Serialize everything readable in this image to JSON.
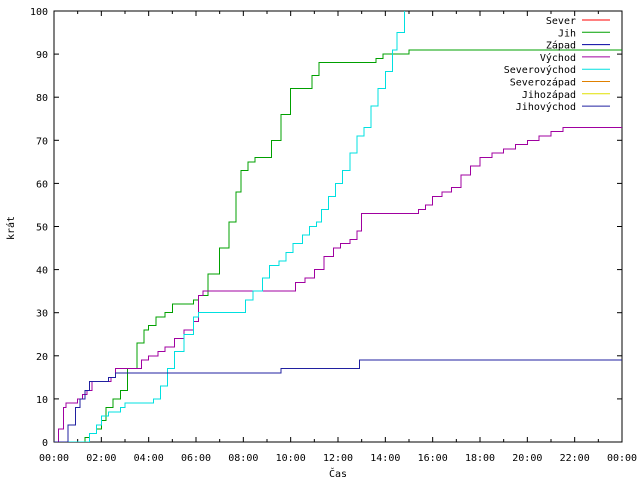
{
  "chart_data": {
    "type": "line",
    "title": "",
    "xlabel": "Čas",
    "ylabel": "krát",
    "xlim": [
      0,
      24
    ],
    "ylim": [
      0,
      100
    ],
    "x_unit": "hours",
    "x_tick_labels": [
      "00:00",
      "02:00",
      "04:00",
      "06:00",
      "08:00",
      "10:00",
      "12:00",
      "14:00",
      "16:00",
      "18:00",
      "20:00",
      "22:00",
      "00:00"
    ],
    "y_tick_labels": [
      "0",
      "10",
      "20",
      "30",
      "40",
      "50",
      "60",
      "70",
      "80",
      "90",
      "100"
    ],
    "legend_position": "top-right",
    "series": [
      {
        "name": "Sever",
        "color": "#ff0000",
        "points": []
      },
      {
        "name": "Jih",
        "color": "#00a000",
        "points": [
          [
            0,
            0
          ],
          [
            1.25,
            0
          ],
          [
            1.3,
            1
          ],
          [
            1.5,
            2
          ],
          [
            1.8,
            3
          ],
          [
            2.0,
            5
          ],
          [
            2.2,
            8
          ],
          [
            2.5,
            10
          ],
          [
            2.8,
            12
          ],
          [
            3.1,
            17
          ],
          [
            3.5,
            23
          ],
          [
            3.8,
            26
          ],
          [
            4.0,
            27
          ],
          [
            4.3,
            29
          ],
          [
            4.7,
            30
          ],
          [
            5.0,
            32
          ],
          [
            5.3,
            32
          ],
          [
            5.6,
            32
          ],
          [
            5.9,
            33
          ],
          [
            6.1,
            34
          ],
          [
            6.5,
            39
          ],
          [
            7.0,
            45
          ],
          [
            7.4,
            51
          ],
          [
            7.7,
            58
          ],
          [
            7.9,
            63
          ],
          [
            8.2,
            65
          ],
          [
            8.5,
            66
          ],
          [
            8.9,
            66
          ],
          [
            9.2,
            70
          ],
          [
            9.6,
            76
          ],
          [
            10.0,
            82
          ],
          [
            10.5,
            82
          ],
          [
            10.9,
            85
          ],
          [
            11.2,
            88
          ],
          [
            11.6,
            88
          ],
          [
            12.5,
            88
          ],
          [
            13.4,
            88
          ],
          [
            13.6,
            89
          ],
          [
            13.9,
            90
          ],
          [
            14.5,
            90
          ],
          [
            15,
            91
          ],
          [
            16,
            91
          ],
          [
            24,
            91
          ]
        ]
      },
      {
        "name": "Západ",
        "color": "#0000a0",
        "points": []
      },
      {
        "name": "Východ",
        "color": "#a000a0",
        "points": [
          [
            0,
            0
          ],
          [
            0.2,
            3
          ],
          [
            0.4,
            8
          ],
          [
            0.5,
            9
          ],
          [
            0.8,
            9
          ],
          [
            1.0,
            10
          ],
          [
            1.2,
            11
          ],
          [
            1.4,
            12
          ],
          [
            1.6,
            14
          ],
          [
            2.0,
            14
          ],
          [
            2.4,
            15
          ],
          [
            2.6,
            17
          ],
          [
            3.0,
            17
          ],
          [
            3.4,
            17
          ],
          [
            3.7,
            19
          ],
          [
            4.0,
            20
          ],
          [
            4.4,
            21
          ],
          [
            4.7,
            22
          ],
          [
            5.1,
            24
          ],
          [
            5.5,
            26
          ],
          [
            5.9,
            28
          ],
          [
            6.1,
            34
          ],
          [
            6.3,
            35
          ],
          [
            7.0,
            35
          ],
          [
            8.0,
            35
          ],
          [
            9.0,
            35
          ],
          [
            9.8,
            35
          ],
          [
            10.2,
            37
          ],
          [
            10.6,
            38
          ],
          [
            11.0,
            40
          ],
          [
            11.4,
            43
          ],
          [
            11.8,
            45
          ],
          [
            12.1,
            46
          ],
          [
            12.5,
            47
          ],
          [
            12.8,
            49
          ],
          [
            13.0,
            53
          ],
          [
            13.5,
            53
          ],
          [
            14.5,
            53
          ],
          [
            15.0,
            53
          ],
          [
            15.4,
            54
          ],
          [
            15.7,
            55
          ],
          [
            16.0,
            57
          ],
          [
            16.4,
            58
          ],
          [
            16.8,
            59
          ],
          [
            17.2,
            62
          ],
          [
            17.6,
            64
          ],
          [
            18.0,
            66
          ],
          [
            18.5,
            67
          ],
          [
            19.0,
            68
          ],
          [
            19.5,
            69
          ],
          [
            20.0,
            70
          ],
          [
            20.5,
            71
          ],
          [
            21.0,
            72
          ],
          [
            21.5,
            73
          ],
          [
            22,
            73
          ],
          [
            24,
            73
          ]
        ]
      },
      {
        "name": "Severovýchod",
        "color": "#00e0e0",
        "points": [
          [
            0,
            0
          ],
          [
            1.3,
            0
          ],
          [
            1.5,
            2
          ],
          [
            1.8,
            4
          ],
          [
            2.0,
            6
          ],
          [
            2.3,
            7
          ],
          [
            2.8,
            8
          ],
          [
            3.0,
            9
          ],
          [
            3.5,
            9
          ],
          [
            4.0,
            9
          ],
          [
            4.2,
            10
          ],
          [
            4.5,
            13
          ],
          [
            4.8,
            17
          ],
          [
            5.1,
            21
          ],
          [
            5.5,
            25
          ],
          [
            5.9,
            29
          ],
          [
            6.1,
            30
          ],
          [
            6.5,
            30
          ],
          [
            7.0,
            30
          ],
          [
            7.5,
            30
          ],
          [
            8.0,
            30
          ],
          [
            8.1,
            33
          ],
          [
            8.4,
            35
          ],
          [
            8.8,
            38
          ],
          [
            9.1,
            41
          ],
          [
            9.5,
            42
          ],
          [
            9.8,
            44
          ],
          [
            10.1,
            46
          ],
          [
            10.5,
            48
          ],
          [
            10.8,
            50
          ],
          [
            11.1,
            51
          ],
          [
            11.3,
            54
          ],
          [
            11.6,
            57
          ],
          [
            11.9,
            60
          ],
          [
            12.2,
            63
          ],
          [
            12.5,
            67
          ],
          [
            12.8,
            71
          ],
          [
            13.1,
            73
          ],
          [
            13.4,
            78
          ],
          [
            13.7,
            82
          ],
          [
            14.0,
            86
          ],
          [
            14.3,
            91
          ],
          [
            14.5,
            95
          ],
          [
            14.8,
            100
          ]
        ]
      },
      {
        "name": "Severozápad",
        "color": "#e08000",
        "points": []
      },
      {
        "name": "Jihozápad",
        "color": "#e0e000",
        "points": []
      },
      {
        "name": "Jihovýchod",
        "color": "#2020a0",
        "points": [
          [
            0,
            0
          ],
          [
            0.4,
            0
          ],
          [
            0.6,
            4
          ],
          [
            0.9,
            8
          ],
          [
            1.1,
            10
          ],
          [
            1.3,
            12
          ],
          [
            1.5,
            14
          ],
          [
            1.8,
            14
          ],
          [
            2.3,
            15
          ],
          [
            2.6,
            16
          ],
          [
            3.0,
            16
          ],
          [
            5.0,
            16
          ],
          [
            7.0,
            16
          ],
          [
            9.0,
            16
          ],
          [
            9.5,
            16
          ],
          [
            9.6,
            17
          ],
          [
            12.0,
            17
          ],
          [
            12.8,
            17
          ],
          [
            12.9,
            19
          ],
          [
            15,
            19
          ],
          [
            20,
            19
          ],
          [
            24,
            19
          ]
        ]
      }
    ]
  }
}
